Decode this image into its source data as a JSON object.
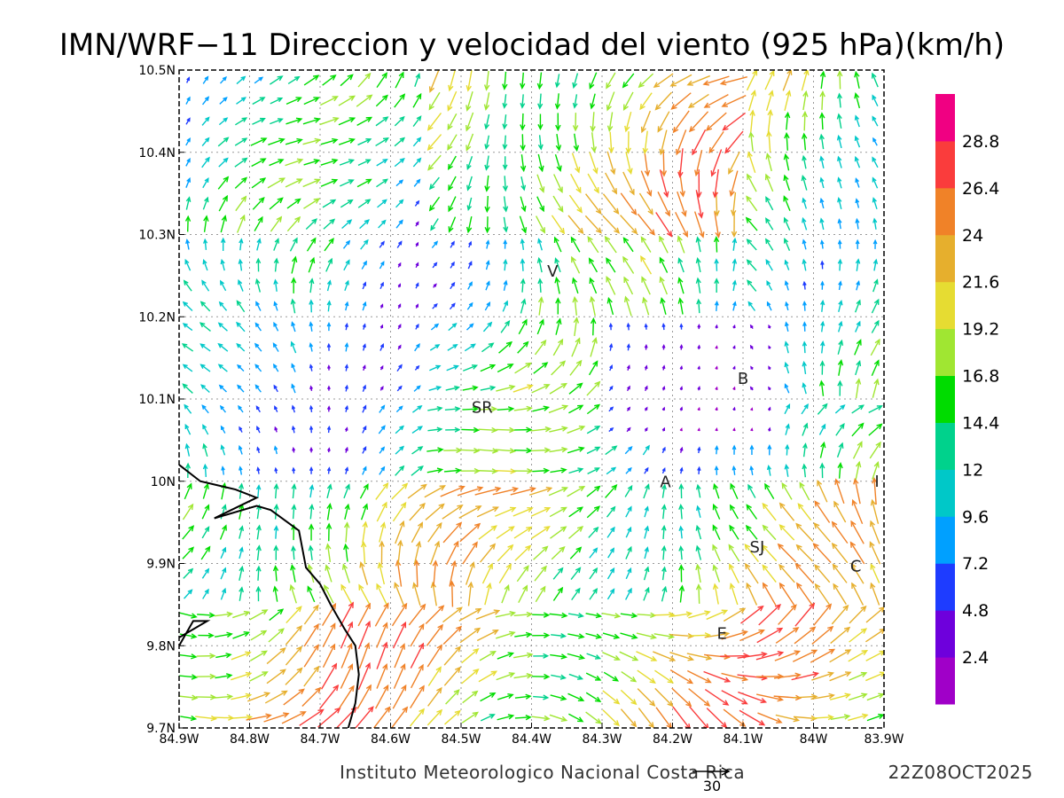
{
  "title": "IMN/WRF−11 Direccion y velocidad del viento (925 hPa)(km/h)",
  "credit": "Instituto Meteorologico Nacional Costa Rica",
  "timestamp": "22Z08OCT2025",
  "reference_vector": {
    "value": 30,
    "label": "30"
  },
  "map": {
    "lon_range": [
      -84.9,
      -83.9
    ],
    "lat_range": [
      9.7,
      10.5
    ],
    "grid": "dotted",
    "x_tick_labels": [
      "84.9W",
      "84.8W",
      "84.7W",
      "84.6W",
      "84.5W",
      "84.4W",
      "84.3W",
      "84.2W",
      "84.1W",
      "84W",
      "83.9W"
    ],
    "y_tick_labels": [
      "9.7N",
      "9.8N",
      "9.9N",
      "10N",
      "10.1N",
      "10.2N",
      "10.3N",
      "10.4N",
      "10.5N"
    ],
    "places": [
      {
        "label": "V",
        "lon": -84.37,
        "lat": 10.255
      },
      {
        "label": "SR",
        "lon": -84.47,
        "lat": 10.09
      },
      {
        "label": "B",
        "lon": -84.1,
        "lat": 10.125
      },
      {
        "label": "A",
        "lon": -84.21,
        "lat": 9.999
      },
      {
        "label": "I",
        "lon": -83.91,
        "lat": 10.0
      },
      {
        "label": "SJ",
        "lon": -84.08,
        "lat": 9.92
      },
      {
        "label": "C",
        "lon": -83.94,
        "lat": 9.897
      },
      {
        "label": "E",
        "lon": -84.13,
        "lat": 9.815
      }
    ],
    "coastline": [
      [
        -84.9,
        10.02
      ],
      [
        -84.87,
        10.0
      ],
      [
        -84.82,
        9.99
      ],
      [
        -84.79,
        9.98
      ],
      [
        -84.85,
        9.955
      ],
      [
        -84.79,
        9.97
      ],
      [
        -84.77,
        9.965
      ],
      [
        -84.73,
        9.94
      ],
      [
        -84.72,
        9.895
      ],
      [
        -84.7,
        9.875
      ],
      [
        -84.685,
        9.85
      ],
      [
        -84.665,
        9.82
      ],
      [
        -84.65,
        9.8
      ],
      [
        -84.645,
        9.765
      ],
      [
        -84.65,
        9.73
      ],
      [
        -84.66,
        9.7
      ]
    ],
    "peninsula": [
      [
        -84.9,
        9.8
      ],
      [
        -84.88,
        9.83
      ],
      [
        -84.86,
        9.83
      ],
      [
        -84.9,
        9.81
      ]
    ]
  },
  "colorbar": {
    "colors": [
      "#a000c8",
      "#6e00dc",
      "#1e3cff",
      "#00a0ff",
      "#00c8c8",
      "#00d28c",
      "#00dc00",
      "#a0e632",
      "#e6dc32",
      "#e6af2d",
      "#f08228",
      "#fa3c3c",
      "#f00082"
    ],
    "labels": [
      "2.4",
      "4.8",
      "7.2",
      "9.6",
      "12",
      "14.4",
      "16.8",
      "19.2",
      "21.6",
      "24",
      "26.4",
      "28.8"
    ]
  },
  "wind_field": {
    "lon_min": -84.9,
    "lon_max": -83.9,
    "lat_min": 9.7,
    "lat_max": 10.5,
    "step_deg": 0.025,
    "regions": [
      {
        "name": "north_band",
        "lat_from": 10.3,
        "lat_to": 10.5,
        "dir_deg": 250,
        "speed_kmh": 20
      },
      {
        "name": "west_flow",
        "lon_to": -84.55,
        "dir_deg": 80,
        "speed_kmh": 11
      },
      {
        "name": "central_valley_westerlies",
        "lat_from": 9.85,
        "lat_to": 10.0,
        "dir_deg": 70,
        "speed_kmh": 18
      },
      {
        "name": "south_northerlies",
        "lat_to": 9.85,
        "dir_deg": 5,
        "speed_kmh": 21
      },
      {
        "name": "northeast_easterlies",
        "lon_from": -84.1,
        "lat_from": 10.1,
        "dir_deg": 120,
        "speed_kmh": 15
      }
    ]
  }
}
